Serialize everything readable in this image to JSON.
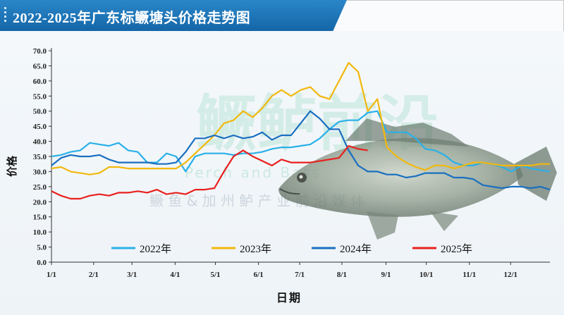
{
  "title": "2022-2025年广东标鳜塘头价格走势图",
  "watermark": {
    "main": "鳜鲈前沿",
    "latin": "Perch and Bass",
    "sub": "鳜 鱼 & 加 州 鲈 产 业 前 沿 媒 体"
  },
  "colors": {
    "s2022": "#2ab0e8",
    "s2023": "#f2b80e",
    "s2024": "#1a6fc0",
    "s2025": "#e8201e",
    "title_bg": "#1a72b8"
  },
  "chart_data": {
    "type": "line",
    "title": "2022-2025年广东标鳜塘头价格走势图",
    "xlabel": "日期",
    "ylabel": "价格",
    "ylim": [
      0,
      70
    ],
    "ytick_step": 5,
    "yticks": [
      "0.0",
      "5.0",
      "10.0",
      "15.0",
      "20.0",
      "25.0",
      "30.0",
      "35.0",
      "40.0",
      "45.0",
      "50.0",
      "55.0",
      "60.0",
      "65.0",
      "70.0"
    ],
    "xlim": [
      1,
      53
    ],
    "xticks": [
      {
        "label": "1/1",
        "week": 1
      },
      {
        "label": "2/1",
        "week": 5.4
      },
      {
        "label": "3/1",
        "week": 9.4
      },
      {
        "label": "4/1",
        "week": 13.9
      },
      {
        "label": "5/1",
        "week": 18.1
      },
      {
        "label": "6/1",
        "week": 22.6
      },
      {
        "label": "7/1",
        "week": 26.9
      },
      {
        "label": "8/1",
        "week": 31.3
      },
      {
        "label": "9/1",
        "week": 35.9
      },
      {
        "label": "10/1",
        "week": 40.1
      },
      {
        "label": "11/1",
        "week": 44.6
      },
      {
        "label": "12/1",
        "week": 48.9
      }
    ],
    "grid": false,
    "legend_position": "bottom",
    "series": [
      {
        "name": "2022年",
        "color": "#2ab0e8",
        "points": [
          [
            1,
            35
          ],
          [
            2,
            35.5
          ],
          [
            3,
            36.5
          ],
          [
            4,
            37
          ],
          [
            5,
            39.5
          ],
          [
            6,
            39
          ],
          [
            7,
            38.5
          ],
          [
            8,
            39.5
          ],
          [
            9,
            37
          ],
          [
            10,
            36.5
          ],
          [
            11,
            33
          ],
          [
            12,
            33
          ],
          [
            13,
            36
          ],
          [
            14,
            35
          ],
          [
            15,
            30
          ],
          [
            16,
            35
          ],
          [
            17,
            36
          ],
          [
            18,
            36
          ],
          [
            19,
            36
          ],
          [
            20,
            35.5
          ],
          [
            21,
            36
          ],
          [
            22,
            36
          ],
          [
            23,
            36.5
          ],
          [
            24,
            37.5
          ],
          [
            25,
            38
          ],
          [
            26,
            38
          ],
          [
            27,
            38.5
          ],
          [
            28,
            39
          ],
          [
            29,
            41
          ],
          [
            30,
            44
          ],
          [
            31,
            46.5
          ],
          [
            32,
            47
          ],
          [
            33,
            47
          ],
          [
            34,
            49.5
          ],
          [
            35,
            50
          ],
          [
            36,
            43
          ],
          [
            37,
            43
          ],
          [
            38,
            43
          ],
          [
            39,
            41
          ],
          [
            40,
            37.5
          ],
          [
            41,
            37
          ],
          [
            42,
            35.5
          ],
          [
            43,
            33
          ],
          [
            44,
            32
          ],
          [
            45,
            32
          ],
          [
            46,
            33
          ],
          [
            47,
            32.5
          ],
          [
            48,
            31.5
          ],
          [
            49,
            30
          ],
          [
            50,
            32
          ],
          [
            51,
            31
          ],
          [
            52,
            30.5
          ],
          [
            53,
            30
          ]
        ]
      },
      {
        "name": "2023年",
        "color": "#f2b80e",
        "points": [
          [
            1,
            31
          ],
          [
            2,
            31.5
          ],
          [
            3,
            30
          ],
          [
            4,
            29.5
          ],
          [
            5,
            29
          ],
          [
            6,
            29.5
          ],
          [
            7,
            31.5
          ],
          [
            8,
            31.5
          ],
          [
            9,
            31
          ],
          [
            10,
            31
          ],
          [
            11,
            31
          ],
          [
            12,
            31
          ],
          [
            13,
            31
          ],
          [
            14,
            31
          ],
          [
            15,
            33
          ],
          [
            16,
            36
          ],
          [
            17,
            39
          ],
          [
            18,
            42
          ],
          [
            19,
            46
          ],
          [
            20,
            47
          ],
          [
            21,
            50
          ],
          [
            22,
            48
          ],
          [
            23,
            51
          ],
          [
            24,
            55
          ],
          [
            25,
            57
          ],
          [
            26,
            55
          ],
          [
            27,
            57
          ],
          [
            28,
            58
          ],
          [
            29,
            55
          ],
          [
            30,
            54
          ],
          [
            31,
            60
          ],
          [
            32,
            66
          ],
          [
            33,
            63
          ],
          [
            34,
            50
          ],
          [
            35,
            54
          ],
          [
            36,
            38
          ],
          [
            37,
            35
          ],
          [
            38,
            33
          ],
          [
            39,
            31.5
          ],
          [
            40,
            30.5
          ],
          [
            41,
            32
          ],
          [
            42,
            32
          ],
          [
            43,
            31
          ],
          [
            44,
            32
          ],
          [
            45,
            33
          ],
          [
            46,
            33
          ],
          [
            47,
            32.5
          ],
          [
            48,
            32
          ],
          [
            49,
            32
          ],
          [
            50,
            32
          ],
          [
            51,
            32
          ],
          [
            52,
            32.5
          ],
          [
            53,
            32.5
          ]
        ]
      },
      {
        "name": "2024年",
        "color": "#1a6fc0",
        "points": [
          [
            1,
            32
          ],
          [
            2,
            34.5
          ],
          [
            3,
            35.5
          ],
          [
            4,
            35
          ],
          [
            5,
            35
          ],
          [
            6,
            35.5
          ],
          [
            7,
            34
          ],
          [
            8,
            33
          ],
          [
            9,
            33
          ],
          [
            10,
            33
          ],
          [
            11,
            33
          ],
          [
            12,
            32.5
          ],
          [
            13,
            32.5
          ],
          [
            14,
            33
          ],
          [
            15,
            36.5
          ],
          [
            16,
            41
          ],
          [
            17,
            41
          ],
          [
            18,
            42
          ],
          [
            19,
            41
          ],
          [
            20,
            42
          ],
          [
            21,
            41
          ],
          [
            22,
            41.5
          ],
          [
            23,
            43
          ],
          [
            24,
            40.5
          ],
          [
            25,
            42
          ],
          [
            26,
            42
          ],
          [
            27,
            46
          ],
          [
            28,
            50
          ],
          [
            29,
            47.5
          ],
          [
            30,
            44
          ],
          [
            31,
            44
          ],
          [
            32,
            37
          ],
          [
            33,
            32
          ],
          [
            34,
            30
          ],
          [
            35,
            30
          ],
          [
            36,
            29
          ],
          [
            37,
            29
          ],
          [
            38,
            28
          ],
          [
            39,
            28.5
          ],
          [
            40,
            29.5
          ],
          [
            41,
            29.5
          ],
          [
            42,
            29.5
          ],
          [
            43,
            28
          ],
          [
            44,
            28
          ],
          [
            45,
            27.5
          ],
          [
            46,
            25.5
          ],
          [
            47,
            25
          ],
          [
            48,
            24.5
          ],
          [
            49,
            25
          ],
          [
            50,
            25
          ],
          [
            51,
            24.5
          ],
          [
            52,
            25
          ],
          [
            53,
            24
          ]
        ]
      },
      {
        "name": "2025年",
        "color": "#e8201e",
        "points": [
          [
            1,
            23.5
          ],
          [
            2,
            22
          ],
          [
            3,
            21
          ],
          [
            4,
            21
          ],
          [
            5,
            22
          ],
          [
            6,
            22.5
          ],
          [
            7,
            22
          ],
          [
            8,
            23
          ],
          [
            9,
            23
          ],
          [
            10,
            23.5
          ],
          [
            11,
            23
          ],
          [
            12,
            24
          ],
          [
            13,
            22.5
          ],
          [
            14,
            23
          ],
          [
            15,
            22.5
          ],
          [
            16,
            24
          ],
          [
            17,
            24
          ],
          [
            18,
            24.5
          ],
          [
            19,
            30
          ],
          [
            20,
            35
          ],
          [
            21,
            37
          ],
          [
            22,
            35
          ],
          [
            23,
            33.5
          ],
          [
            24,
            32
          ],
          [
            25,
            34
          ],
          [
            26,
            33
          ],
          [
            27,
            33
          ],
          [
            28,
            33
          ],
          [
            29,
            33.5
          ],
          [
            30,
            34
          ],
          [
            31,
            34.5
          ],
          [
            32,
            38.5
          ],
          [
            33,
            37.5
          ],
          [
            34,
            37
          ]
        ]
      }
    ]
  }
}
